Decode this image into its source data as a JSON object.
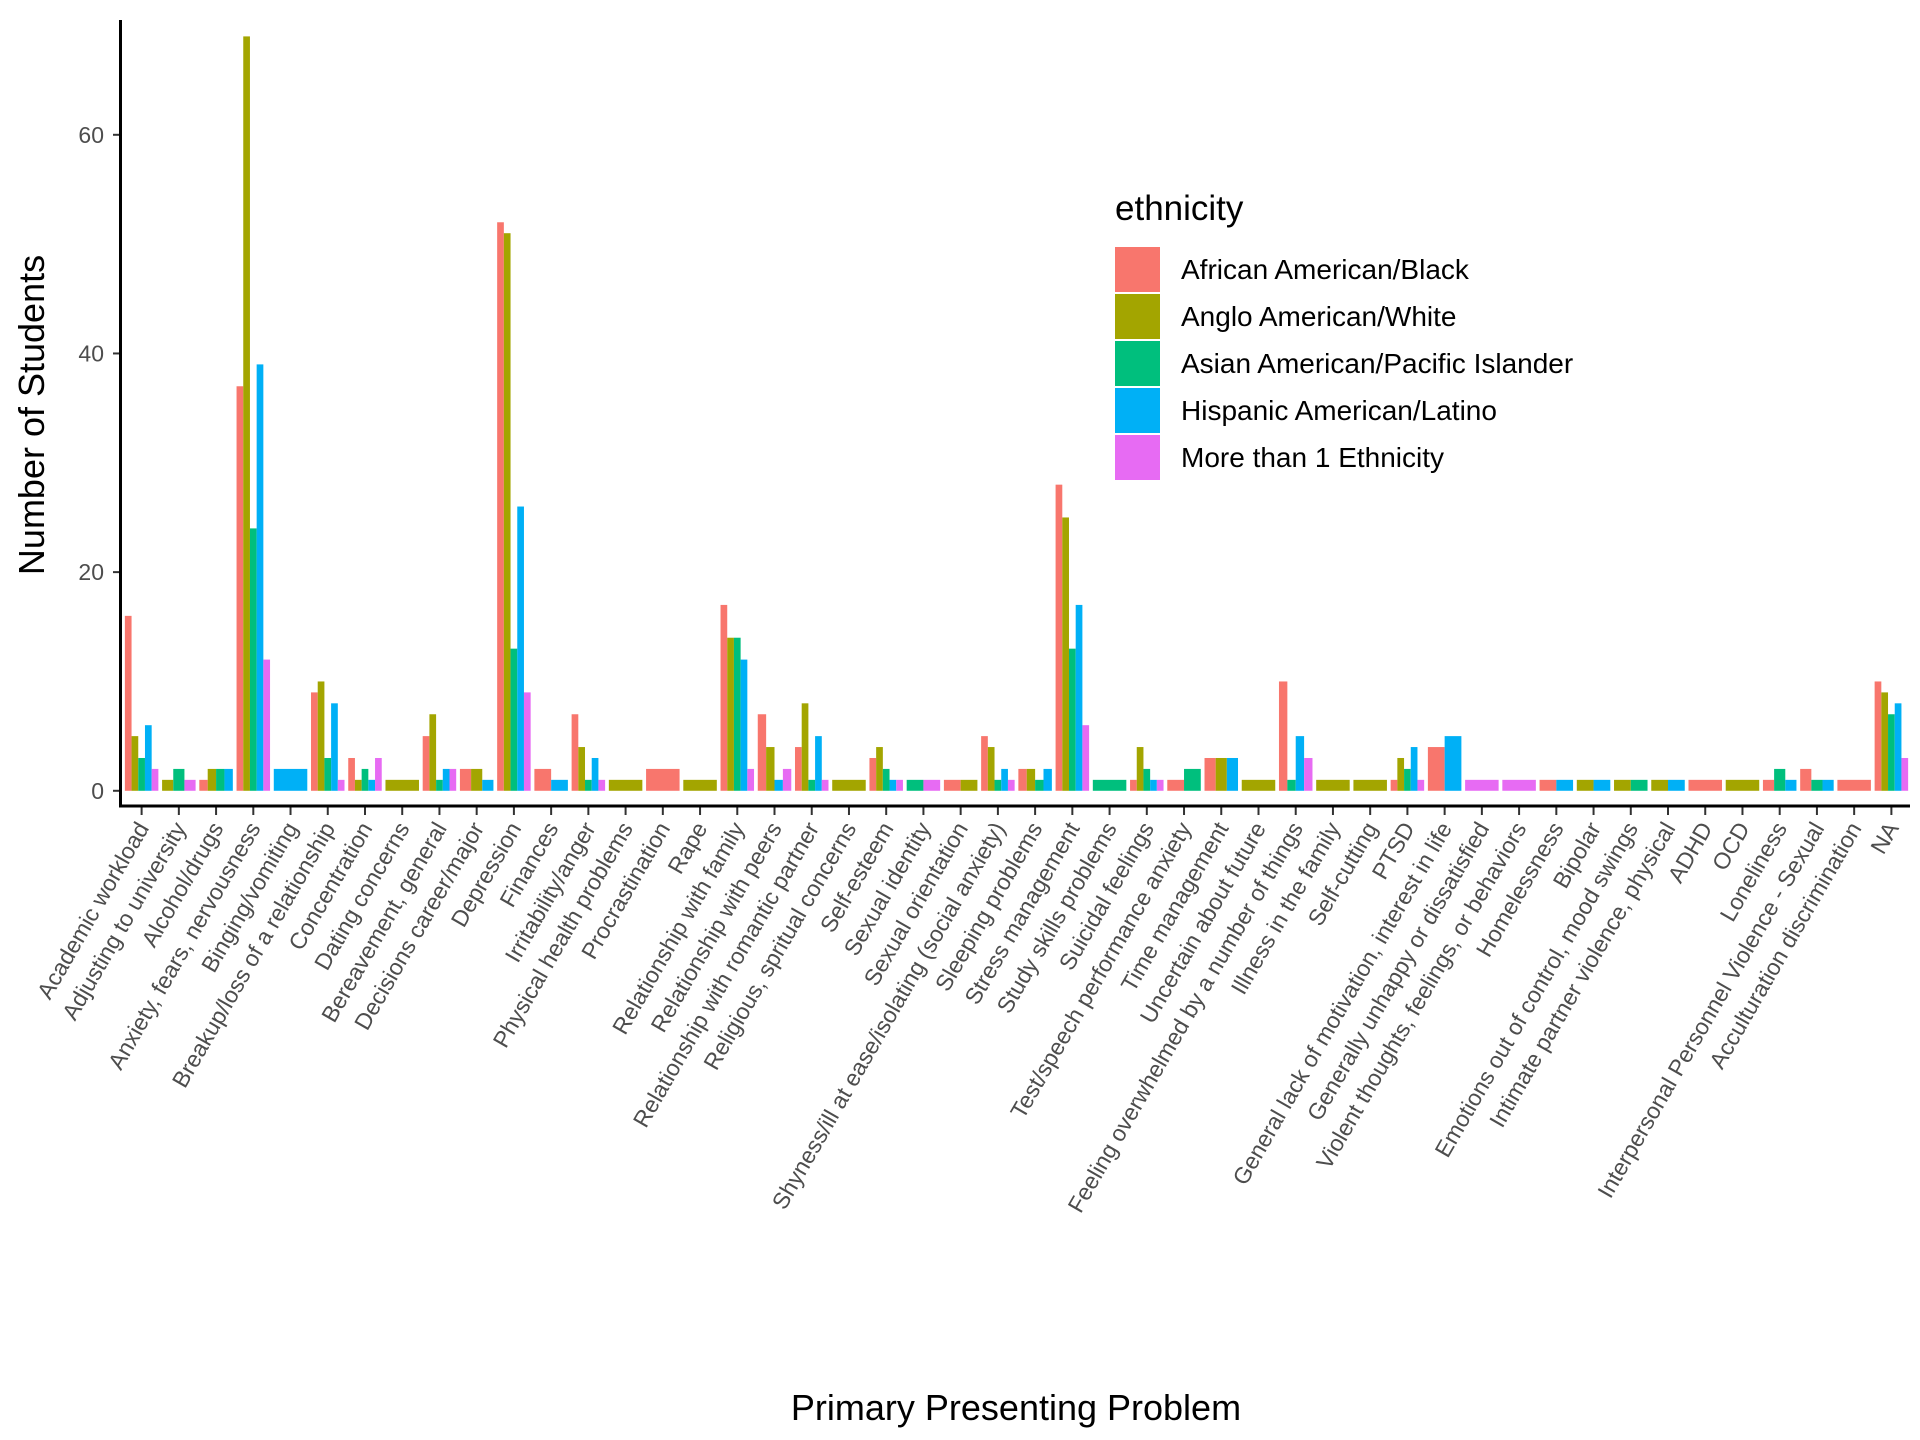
{
  "chart_data": {
    "type": "bar",
    "xlabel": "Primary Presenting Problem",
    "ylabel": "Number of Students",
    "ylim": [
      -1.3,
      70.5
    ],
    "yticks": [
      0,
      20,
      40,
      60
    ],
    "grid": false,
    "bar_mode": "dodge (missing groups collapse)",
    "legend": {
      "title": "ethnicity",
      "position": "top-right inside plot",
      "entries": [
        "African American/Black",
        "Anglo American/White",
        "Asian American/Pacific Islander",
        "Hispanic American/Latino",
        "More than 1 Ethnicity"
      ]
    },
    "colors": {
      "African American/Black": "#F8766D",
      "Anglo American/White": "#A3A500",
      "Asian American/Pacific Islander": "#00BF7D",
      "Hispanic American/Latino": "#00B0F6",
      "More than 1 Ethnicity": "#E76BF3"
    },
    "categories": [
      "Academic workload",
      "Adjusting to university",
      "Alcohol/drugs",
      "Anxiety, fears, nervousness",
      "Binging/vomiting",
      "Breakup/loss of a relationship",
      "Concentration",
      "Dating concerns",
      "Bereavement, general",
      "Decisions career/major",
      "Depression",
      "Finances",
      "Irritability/anger",
      "Physical health problems",
      "Procrastination",
      "Rape",
      "Relationship with family",
      "Relationship with peers",
      "Relationship with romantic partner",
      "Religious, spritual concerns",
      "Self-esteem",
      "Sexual identity",
      "Sexual orientation",
      "Shyness/ill at ease/isolating (social anxiety)",
      "Sleeping problems",
      "Stress management",
      "Study skills problems",
      "Suicidal feelings",
      "Test/speech performance anxiety",
      "Time management",
      "Uncertain about future",
      "Feeling overwhelmed by a number of things",
      "Illness in the family",
      "Self-cutting",
      "PTSD",
      "General lack of motivation, interest in life",
      "Generally unhappy or dissatisfied",
      "Violent thoughts, feelings, or behaviors",
      "Homelessness",
      "Bipolar",
      "Emotions out of control, mood swings",
      "Intimate partner violence, physical",
      "ADHD",
      "OCD",
      "Loneliness",
      "Interpersonal Personnel Violence - Sexual",
      "Acculturation discrimination",
      "NA"
    ],
    "groups": [
      [
        {
          "series": "African American/Black",
          "value": 16
        },
        {
          "series": "Anglo American/White",
          "value": 5
        },
        {
          "series": "Asian American/Pacific Islander",
          "value": 3
        },
        {
          "series": "Hispanic American/Latino",
          "value": 6
        },
        {
          "series": "More than 1 Ethnicity",
          "value": 2
        }
      ],
      [
        {
          "series": "Anglo American/White",
          "value": 1
        },
        {
          "series": "Asian American/Pacific Islander",
          "value": 2
        },
        {
          "series": "More than 1 Ethnicity",
          "value": 1
        }
      ],
      [
        {
          "series": "African American/Black",
          "value": 1
        },
        {
          "series": "Anglo American/White",
          "value": 2
        },
        {
          "series": "Asian American/Pacific Islander",
          "value": 2
        },
        {
          "series": "Hispanic American/Latino",
          "value": 2
        }
      ],
      [
        {
          "series": "African American/Black",
          "value": 37
        },
        {
          "series": "Anglo American/White",
          "value": 69
        },
        {
          "series": "Asian American/Pacific Islander",
          "value": 24
        },
        {
          "series": "Hispanic American/Latino",
          "value": 39
        },
        {
          "series": "More than 1 Ethnicity",
          "value": 12
        }
      ],
      [
        {
          "series": "Hispanic American/Latino",
          "value": 2
        }
      ],
      [
        {
          "series": "African American/Black",
          "value": 9
        },
        {
          "series": "Anglo American/White",
          "value": 10
        },
        {
          "series": "Asian American/Pacific Islander",
          "value": 3
        },
        {
          "series": "Hispanic American/Latino",
          "value": 8
        },
        {
          "series": "More than 1 Ethnicity",
          "value": 1
        }
      ],
      [
        {
          "series": "African American/Black",
          "value": 3
        },
        {
          "series": "Anglo American/White",
          "value": 1
        },
        {
          "series": "Asian American/Pacific Islander",
          "value": 2
        },
        {
          "series": "Hispanic American/Latino",
          "value": 1
        },
        {
          "series": "More than 1 Ethnicity",
          "value": 3
        }
      ],
      [
        {
          "series": "Anglo American/White",
          "value": 1
        }
      ],
      [
        {
          "series": "African American/Black",
          "value": 5
        },
        {
          "series": "Anglo American/White",
          "value": 7
        },
        {
          "series": "Asian American/Pacific Islander",
          "value": 1
        },
        {
          "series": "Hispanic American/Latino",
          "value": 2
        },
        {
          "series": "More than 1 Ethnicity",
          "value": 2
        }
      ],
      [
        {
          "series": "African American/Black",
          "value": 2
        },
        {
          "series": "Anglo American/White",
          "value": 2
        },
        {
          "series": "Hispanic American/Latino",
          "value": 1
        }
      ],
      [
        {
          "series": "African American/Black",
          "value": 52
        },
        {
          "series": "Anglo American/White",
          "value": 51
        },
        {
          "series": "Asian American/Pacific Islander",
          "value": 13
        },
        {
          "series": "Hispanic American/Latino",
          "value": 26
        },
        {
          "series": "More than 1 Ethnicity",
          "value": 9
        }
      ],
      [
        {
          "series": "African American/Black",
          "value": 2
        },
        {
          "series": "Hispanic American/Latino",
          "value": 1
        }
      ],
      [
        {
          "series": "African American/Black",
          "value": 7
        },
        {
          "series": "Anglo American/White",
          "value": 4
        },
        {
          "series": "Asian American/Pacific Islander",
          "value": 1
        },
        {
          "series": "Hispanic American/Latino",
          "value": 3
        },
        {
          "series": "More than 1 Ethnicity",
          "value": 1
        }
      ],
      [
        {
          "series": "Anglo American/White",
          "value": 1
        }
      ],
      [
        {
          "series": "African American/Black",
          "value": 2
        }
      ],
      [
        {
          "series": "Anglo American/White",
          "value": 1
        }
      ],
      [
        {
          "series": "African American/Black",
          "value": 17
        },
        {
          "series": "Anglo American/White",
          "value": 14
        },
        {
          "series": "Asian American/Pacific Islander",
          "value": 14
        },
        {
          "series": "Hispanic American/Latino",
          "value": 12
        },
        {
          "series": "More than 1 Ethnicity",
          "value": 2
        }
      ],
      [
        {
          "series": "African American/Black",
          "value": 7
        },
        {
          "series": "Anglo American/White",
          "value": 4
        },
        {
          "series": "Hispanic American/Latino",
          "value": 1
        },
        {
          "series": "More than 1 Ethnicity",
          "value": 2
        }
      ],
      [
        {
          "series": "African American/Black",
          "value": 4
        },
        {
          "series": "Anglo American/White",
          "value": 8
        },
        {
          "series": "Asian American/Pacific Islander",
          "value": 1
        },
        {
          "series": "Hispanic American/Latino",
          "value": 5
        },
        {
          "series": "More than 1 Ethnicity",
          "value": 1
        }
      ],
      [
        {
          "series": "Anglo American/White",
          "value": 1
        }
      ],
      [
        {
          "series": "African American/Black",
          "value": 3
        },
        {
          "series": "Anglo American/White",
          "value": 4
        },
        {
          "series": "Asian American/Pacific Islander",
          "value": 2
        },
        {
          "series": "Hispanic American/Latino",
          "value": 1
        },
        {
          "series": "More than 1 Ethnicity",
          "value": 1
        }
      ],
      [
        {
          "series": "Asian American/Pacific Islander",
          "value": 1
        },
        {
          "series": "More than 1 Ethnicity",
          "value": 1
        }
      ],
      [
        {
          "series": "African American/Black",
          "value": 1
        },
        {
          "series": "Anglo American/White",
          "value": 1
        }
      ],
      [
        {
          "series": "African American/Black",
          "value": 5
        },
        {
          "series": "Anglo American/White",
          "value": 4
        },
        {
          "series": "Asian American/Pacific Islander",
          "value": 1
        },
        {
          "series": "Hispanic American/Latino",
          "value": 2
        },
        {
          "series": "More than 1 Ethnicity",
          "value": 1
        }
      ],
      [
        {
          "series": "African American/Black",
          "value": 2
        },
        {
          "series": "Anglo American/White",
          "value": 2
        },
        {
          "series": "Asian American/Pacific Islander",
          "value": 1
        },
        {
          "series": "Hispanic American/Latino",
          "value": 2
        }
      ],
      [
        {
          "series": "African American/Black",
          "value": 28
        },
        {
          "series": "Anglo American/White",
          "value": 25
        },
        {
          "series": "Asian American/Pacific Islander",
          "value": 13
        },
        {
          "series": "Hispanic American/Latino",
          "value": 17
        },
        {
          "series": "More than 1 Ethnicity",
          "value": 6
        }
      ],
      [
        {
          "series": "Asian American/Pacific Islander",
          "value": 1
        }
      ],
      [
        {
          "series": "African American/Black",
          "value": 1
        },
        {
          "series": "Anglo American/White",
          "value": 4
        },
        {
          "series": "Asian American/Pacific Islander",
          "value": 2
        },
        {
          "series": "Hispanic American/Latino",
          "value": 1
        },
        {
          "series": "More than 1 Ethnicity",
          "value": 1
        }
      ],
      [
        {
          "series": "African American/Black",
          "value": 1
        },
        {
          "series": "Asian American/Pacific Islander",
          "value": 2
        }
      ],
      [
        {
          "series": "African American/Black",
          "value": 3
        },
        {
          "series": "Anglo American/White",
          "value": 3
        },
        {
          "series": "Hispanic American/Latino",
          "value": 3
        }
      ],
      [
        {
          "series": "Anglo American/White",
          "value": 1
        }
      ],
      [
        {
          "series": "African American/Black",
          "value": 10
        },
        {
          "series": "Asian American/Pacific Islander",
          "value": 1
        },
        {
          "series": "Hispanic American/Latino",
          "value": 5
        },
        {
          "series": "More than 1 Ethnicity",
          "value": 3
        }
      ],
      [
        {
          "series": "Anglo American/White",
          "value": 1
        }
      ],
      [
        {
          "series": "Anglo American/White",
          "value": 1
        }
      ],
      [
        {
          "series": "African American/Black",
          "value": 1
        },
        {
          "series": "Anglo American/White",
          "value": 3
        },
        {
          "series": "Asian American/Pacific Islander",
          "value": 2
        },
        {
          "series": "Hispanic American/Latino",
          "value": 4
        },
        {
          "series": "More than 1 Ethnicity",
          "value": 1
        }
      ],
      [
        {
          "series": "African American/Black",
          "value": 4
        },
        {
          "series": "Hispanic American/Latino",
          "value": 5
        }
      ],
      [
        {
          "series": "More than 1 Ethnicity",
          "value": 1
        }
      ],
      [
        {
          "series": "More than 1 Ethnicity",
          "value": 1
        }
      ],
      [
        {
          "series": "African American/Black",
          "value": 1
        },
        {
          "series": "Hispanic American/Latino",
          "value": 1
        }
      ],
      [
        {
          "series": "Anglo American/White",
          "value": 1
        },
        {
          "series": "Hispanic American/Latino",
          "value": 1
        }
      ],
      [
        {
          "series": "Anglo American/White",
          "value": 1
        },
        {
          "series": "Asian American/Pacific Islander",
          "value": 1
        }
      ],
      [
        {
          "series": "Anglo American/White",
          "value": 1
        },
        {
          "series": "Hispanic American/Latino",
          "value": 1
        }
      ],
      [
        {
          "series": "African American/Black",
          "value": 1
        }
      ],
      [
        {
          "series": "Anglo American/White",
          "value": 1
        }
      ],
      [
        {
          "series": "African American/Black",
          "value": 1
        },
        {
          "series": "Asian American/Pacific Islander",
          "value": 2
        },
        {
          "series": "Hispanic American/Latino",
          "value": 1
        }
      ],
      [
        {
          "series": "African American/Black",
          "value": 2
        },
        {
          "series": "Asian American/Pacific Islander",
          "value": 1
        },
        {
          "series": "Hispanic American/Latino",
          "value": 1
        }
      ],
      [
        {
          "series": "African American/Black",
          "value": 1
        }
      ],
      [
        {
          "series": "African American/Black",
          "value": 10
        },
        {
          "series": "Anglo American/White",
          "value": 9
        },
        {
          "series": "Asian American/Pacific Islander",
          "value": 7
        },
        {
          "series": "Hispanic American/Latino",
          "value": 8
        },
        {
          "series": "More than 1 Ethnicity",
          "value": 3
        }
      ]
    ]
  }
}
